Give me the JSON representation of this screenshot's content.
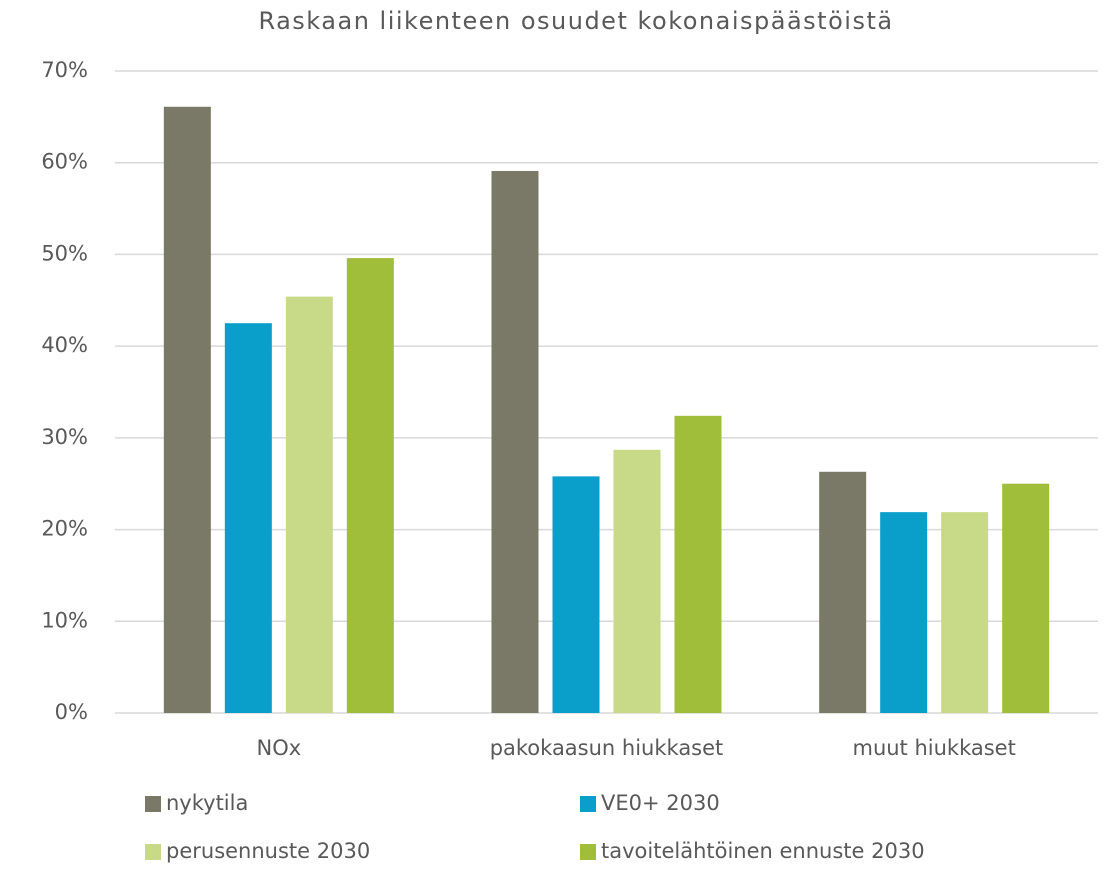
{
  "chart_data": {
    "type": "bar",
    "title": "Raskaan liikenteen osuudet kokonaispäästöistä",
    "categories": [
      "NOx",
      "pakokaasun hiukkaset",
      "muut hiukkaset"
    ],
    "series": [
      {
        "name": "nykytila",
        "color": "#7a7866",
        "values": [
          66.1,
          59.1,
          26.3
        ]
      },
      {
        "name": "VE0+ 2030",
        "color": "#0a9ecb",
        "values": [
          42.5,
          25.8,
          21.9
        ]
      },
      {
        "name": "perusennuste 2030",
        "color": "#c8da88",
        "values": [
          45.4,
          28.7,
          21.9
        ]
      },
      {
        "name": "tavoitelähtöinen ennuste 2030",
        "color": "#a0be3a",
        "values": [
          49.6,
          32.4,
          25.0
        ]
      }
    ],
    "ylim": [
      0,
      70
    ],
    "yticks": [
      {
        "value": 0,
        "label": "0%"
      },
      {
        "value": 10,
        "label": "10%"
      },
      {
        "value": 20,
        "label": "20%"
      },
      {
        "value": 30,
        "label": "30%"
      },
      {
        "value": 40,
        "label": "40%"
      },
      {
        "value": 50,
        "label": "50%"
      },
      {
        "value": 60,
        "label": "60%"
      },
      {
        "value": 70,
        "label": "70%"
      }
    ],
    "grid": true,
    "legend": "bottom"
  }
}
